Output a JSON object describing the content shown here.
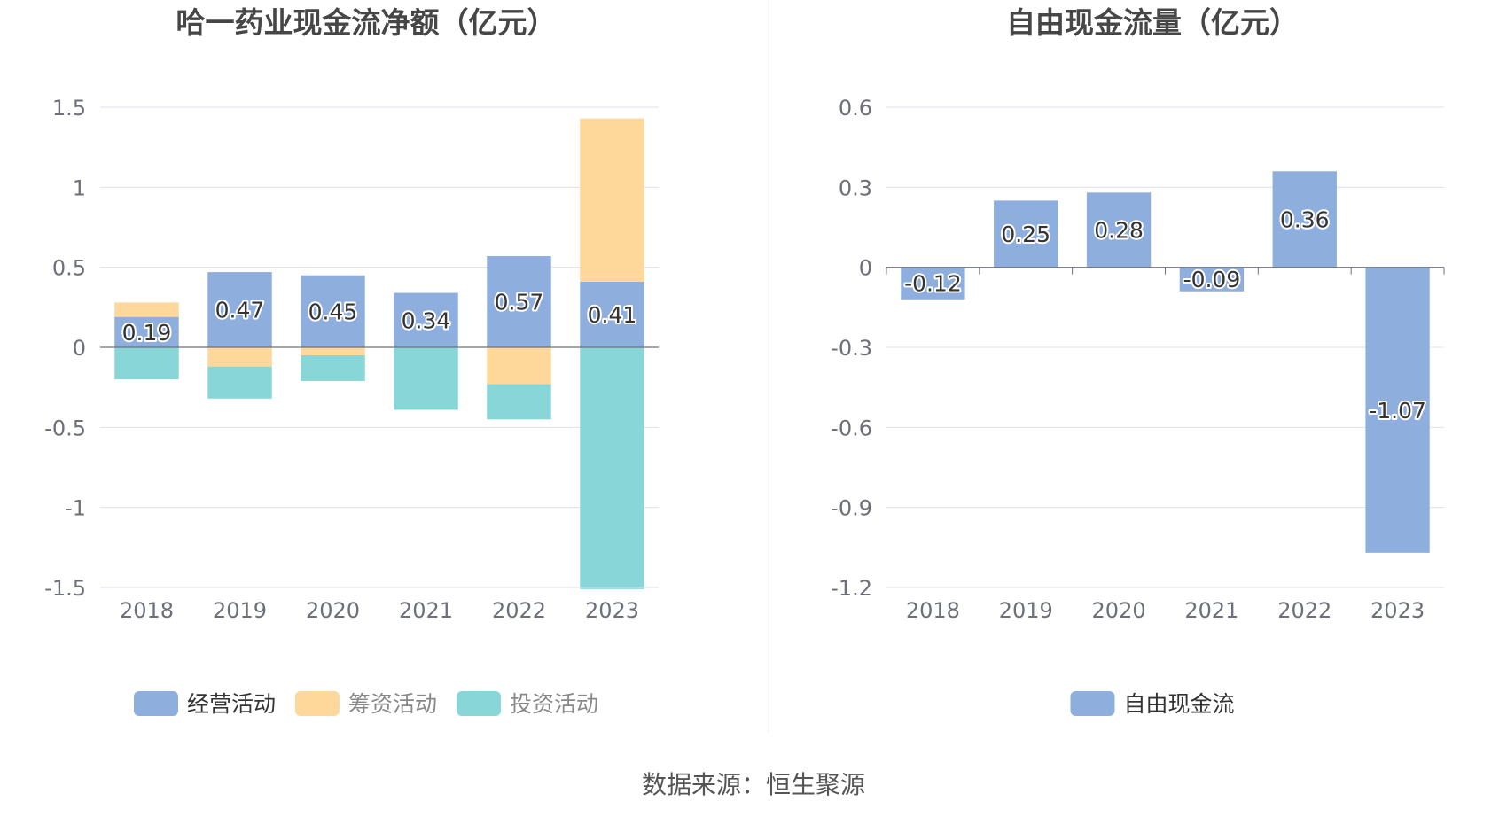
{
  "source_text": "数据来源：恒生聚源",
  "colors": {
    "operating": "#8eaedd",
    "financing": "#fdd89a",
    "investing": "#88d6d8",
    "fcf": "#8eaedd",
    "grid": "#e0e0ea",
    "axis_text": "#6e7079",
    "title_text": "#464646"
  },
  "chart_data": [
    {
      "type": "bar",
      "stacked": true,
      "title": "哈一药业现金流净额（亿元）",
      "categories": [
        "2018",
        "2019",
        "2020",
        "2021",
        "2022",
        "2023"
      ],
      "ylim": [
        -1.5,
        1.5
      ],
      "yticks": [
        "1.5",
        "1",
        "0.5",
        "0",
        "-0.5",
        "-1",
        "-1.5"
      ],
      "ytick_values": [
        1.5,
        1,
        0.5,
        0,
        -0.5,
        -1,
        -1.5
      ],
      "grid": true,
      "legend_position": "bottom",
      "series": [
        {
          "name": "经营活动",
          "values": [
            0.19,
            0.47,
            0.45,
            0.34,
            0.57,
            0.41
          ],
          "labels": [
            "0.19",
            "0.47",
            "0.45",
            "0.34",
            "0.57",
            "0.41"
          ]
        },
        {
          "name": "筹资活动",
          "values": [
            0.09,
            -0.12,
            -0.05,
            0.0,
            -0.23,
            1.02
          ]
        },
        {
          "name": "投资活动",
          "values": [
            -0.2,
            -0.2,
            -0.16,
            -0.39,
            -0.22,
            -1.51
          ]
        }
      ]
    },
    {
      "type": "bar",
      "stacked": false,
      "title": "自由现金流量（亿元）",
      "categories": [
        "2018",
        "2019",
        "2020",
        "2021",
        "2022",
        "2023"
      ],
      "ylim": [
        -1.2,
        0.6
      ],
      "yticks": [
        "0.6",
        "0.3",
        "0",
        "-0.3",
        "-0.6",
        "-0.9",
        "-1.2"
      ],
      "ytick_values": [
        0.6,
        0.3,
        0,
        -0.3,
        -0.6,
        -0.9,
        -1.2
      ],
      "grid": true,
      "legend_position": "bottom",
      "series": [
        {
          "name": "自由现金流",
          "values": [
            -0.12,
            0.25,
            0.28,
            -0.09,
            0.36,
            -1.07
          ],
          "labels": [
            "-0.12",
            "0.25",
            "0.28",
            "-0.09",
            "0.36",
            "-1.07"
          ]
        }
      ]
    }
  ]
}
